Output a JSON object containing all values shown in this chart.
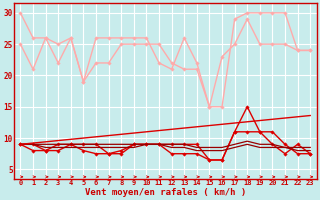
{
  "background_color": "#c8ecec",
  "grid_color": "#ffffff",
  "xlabel": "Vent moyen/en rafales ( km/h )",
  "x_values": [
    0,
    1,
    2,
    3,
    4,
    5,
    6,
    7,
    8,
    9,
    10,
    11,
    12,
    13,
    14,
    15,
    16,
    17,
    18,
    19,
    20,
    21,
    22,
    23
  ],
  "series": [
    {
      "data": [
        30,
        26,
        26,
        25,
        26,
        19,
        26,
        26,
        26,
        26,
        26,
        22,
        21,
        26,
        22,
        15,
        15,
        29,
        30,
        30,
        30,
        30,
        24,
        24
      ],
      "color": "#ffaaaa",
      "lw": 1.0,
      "marker": "D",
      "ms": 1.8
    },
    {
      "data": [
        25,
        21,
        26,
        22,
        26,
        19,
        22,
        22,
        25,
        25,
        25,
        25,
        22,
        21,
        21,
        15,
        23,
        25,
        29,
        25,
        25,
        25,
        24,
        24
      ],
      "color": "#ffaaaa",
      "lw": 1.0,
      "marker": "D",
      "ms": 1.8
    },
    {
      "data": [
        9.0,
        9.0,
        8.0,
        9.0,
        9.0,
        9.0,
        9.0,
        7.5,
        7.5,
        9.0,
        9.0,
        9.0,
        9.0,
        9.0,
        9.0,
        6.5,
        6.5,
        11.0,
        15.0,
        11.0,
        11.0,
        9.0,
        7.5,
        7.5
      ],
      "color": "#dd0000",
      "lw": 1.0,
      "marker": "D",
      "ms": 1.8
    },
    {
      "data": [
        9.0,
        8.0,
        8.0,
        8.0,
        9.0,
        8.0,
        7.5,
        7.5,
        8.0,
        9.0,
        9.0,
        9.0,
        7.5,
        7.5,
        7.5,
        6.5,
        6.5,
        11.0,
        11.0,
        11.0,
        9.0,
        7.5,
        9.0,
        7.5
      ],
      "color": "#dd0000",
      "lw": 1.0,
      "marker": "D",
      "ms": 1.8
    },
    {
      "data": [
        9.0,
        9.0,
        8.5,
        8.5,
        8.5,
        8.5,
        8.5,
        8.5,
        8.5,
        8.5,
        9.0,
        9.0,
        8.5,
        8.5,
        8.0,
        8.0,
        8.0,
        8.5,
        9.0,
        8.5,
        8.5,
        8.5,
        8.0,
        8.0
      ],
      "color": "#990000",
      "lw": 0.9,
      "marker": null,
      "ms": 0
    },
    {
      "data": [
        9.0,
        9.0,
        9.0,
        9.0,
        9.0,
        9.0,
        9.0,
        9.0,
        9.0,
        9.0,
        9.0,
        9.0,
        9.0,
        9.0,
        8.5,
        8.5,
        8.5,
        9.0,
        9.5,
        9.0,
        9.0,
        8.5,
        8.5,
        8.5
      ],
      "color": "#990000",
      "lw": 0.9,
      "marker": null,
      "ms": 0
    },
    {
      "data": [
        9.0,
        9.2,
        9.4,
        9.6,
        9.8,
        10.0,
        10.2,
        10.4,
        10.6,
        10.8,
        11.0,
        11.2,
        11.4,
        11.6,
        11.8,
        12.0,
        12.2,
        12.4,
        12.6,
        12.8,
        13.0,
        13.2,
        13.4,
        13.6
      ],
      "color": "#dd0000",
      "lw": 1.0,
      "marker": null,
      "ms": 0
    }
  ],
  "ylim": [
    3.5,
    31.5
  ],
  "yticks": [
    5,
    10,
    15,
    20,
    25,
    30
  ],
  "xticks": [
    0,
    1,
    2,
    3,
    4,
    5,
    6,
    7,
    8,
    9,
    10,
    11,
    12,
    13,
    14,
    15,
    16,
    17,
    18,
    19,
    20,
    21,
    22,
    23
  ],
  "tick_fontsize": 5.0,
  "xlabel_fontsize": 6.5,
  "arrow_color": "#cc0000"
}
